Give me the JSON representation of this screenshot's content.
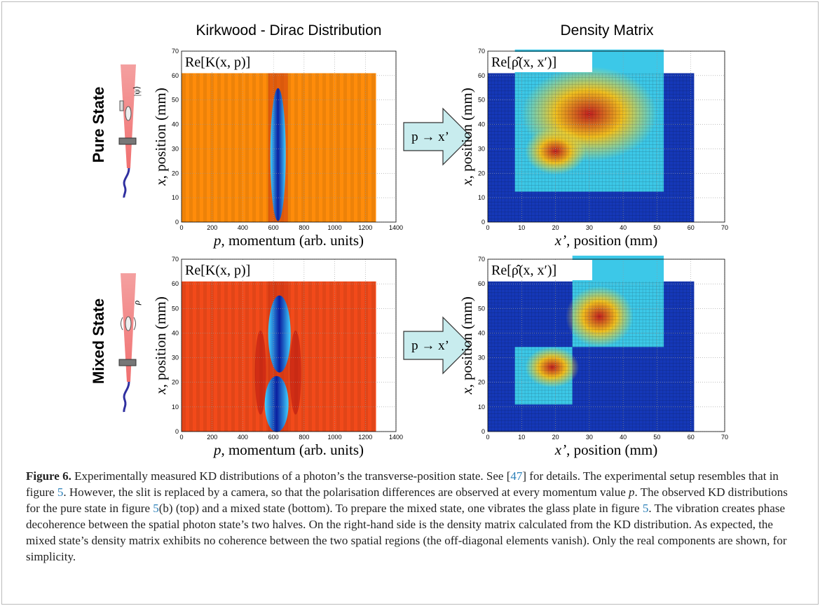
{
  "figure": {
    "column_titles": [
      "Kirkwood - Dirac Distribution",
      "Density Matrix"
    ],
    "row_labels": [
      "Pure State",
      "Mixed State"
    ],
    "state_symbols": [
      "|ψ⟩",
      "ρ"
    ],
    "arrow_label": "p → x’",
    "panels": [
      {
        "label": "Re[K(x, p)]",
        "xlabel": [
          "p",
          ", momentum (arb. units)"
        ],
        "ylabel": [
          "x",
          ", position (mm)"
        ],
        "xlim": [
          0,
          1400
        ],
        "ylim": [
          0,
          70
        ],
        "xticks": [
          0,
          200,
          400,
          600,
          800,
          1000,
          1200,
          1400
        ],
        "yticks": [
          0,
          10,
          20,
          30,
          40,
          50,
          60,
          70
        ]
      },
      {
        "label": "Re[ρ̂(x, x′)]",
        "xlabel": [
          "x’",
          ", position (mm)"
        ],
        "ylabel": [
          "x",
          ", position (mm)"
        ],
        "xlim": [
          0,
          70
        ],
        "ylim": [
          0,
          70
        ],
        "xticks": [
          0,
          10,
          20,
          30,
          40,
          50,
          60,
          70
        ],
        "yticks": [
          0,
          10,
          20,
          30,
          40,
          50,
          60,
          70
        ]
      },
      {
        "label": "Re[K(x, p)]",
        "xlabel": [
          "p",
          ", momentum (arb. units)"
        ],
        "ylabel": [
          "x",
          ", position (mm)"
        ],
        "xlim": [
          0,
          1400
        ],
        "ylim": [
          0,
          70
        ],
        "xticks": [
          0,
          200,
          400,
          600,
          800,
          1000,
          1200,
          1400
        ],
        "yticks": [
          0,
          10,
          20,
          30,
          40,
          50,
          60,
          70
        ]
      },
      {
        "label": "Re[ρ̂(x, x′)]",
        "xlabel": [
          "x’",
          ", position (mm)"
        ],
        "ylabel": [
          "x",
          ", position (mm)"
        ],
        "xlim": [
          0,
          70
        ],
        "ylim": [
          0,
          70
        ],
        "xticks": [
          0,
          10,
          20,
          30,
          40,
          50,
          60,
          70
        ],
        "yticks": [
          0,
          10,
          20,
          30,
          40,
          50,
          60,
          70
        ]
      }
    ]
  },
  "caption": {
    "label": "Figure 6.",
    "parts": [
      " Experimentally measured KD distributions of a photon’s the transverse-position state. See [",
      "47",
      "] for details. The experimental setup resembles that in figure ",
      "5",
      ". However, the slit is replaced by a camera, so that the polarisation differences are observed at every momentum value ",
      "p",
      ". The observed KD distributions for the pure state in figure ",
      "5",
      "(b) (top) and a mixed state (bottom). To prepare the mixed state, one vibrates the glass plate in figure ",
      "5",
      ". The vibration creates phase decoherence between the spatial photon state’s two halves. On the right-hand side is the density matrix calculated from the KD distribution. As expected, the mixed state’s density matrix exhibits no coherence between the two spatial regions (the off-diagonal elements vanish). Only the real components are shown, for simplicity."
    ]
  }
}
